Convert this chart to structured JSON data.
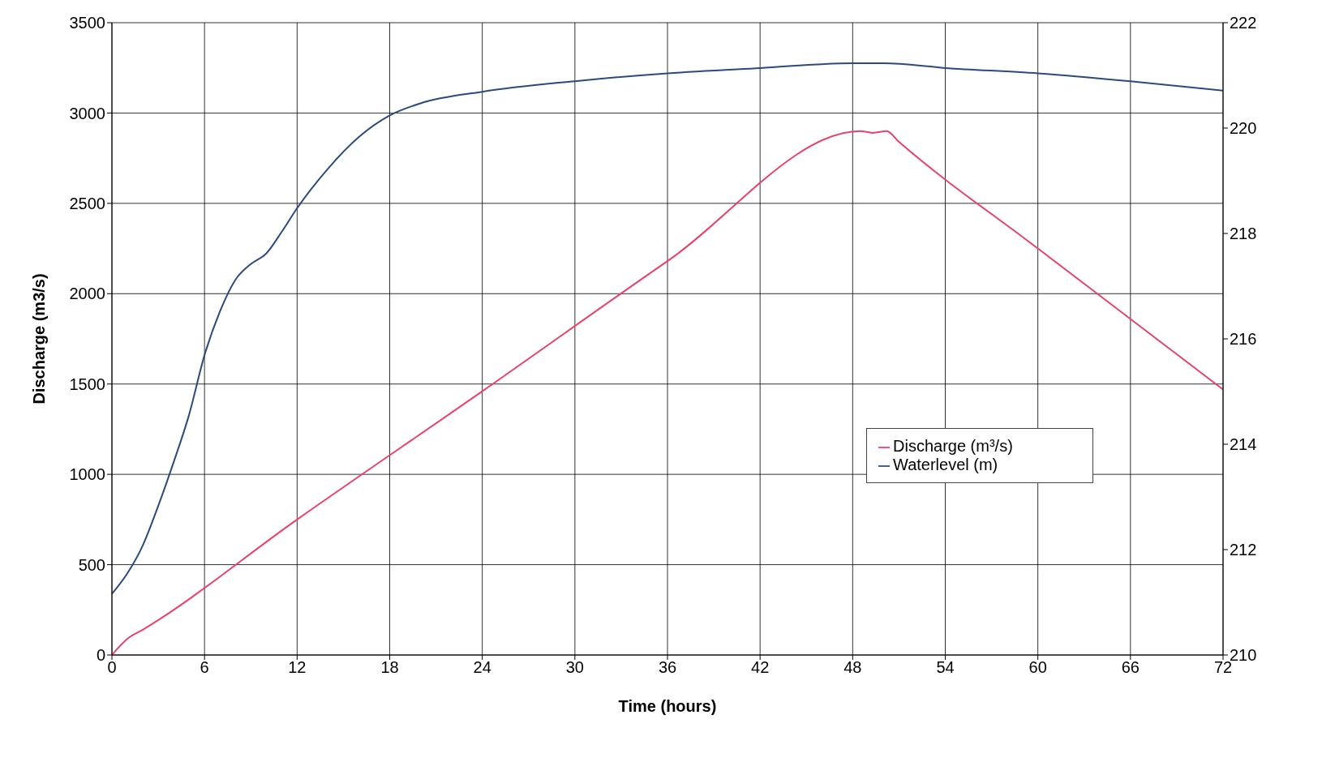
{
  "chart_data": {
    "type": "line",
    "xlabel": "Time (hours)",
    "ylabel": "Discharge (m3/s)",
    "xlim": [
      0,
      72
    ],
    "xticks": [
      0,
      6,
      12,
      18,
      24,
      30,
      36,
      42,
      48,
      54,
      60,
      66,
      72
    ],
    "ylim": [
      0,
      3500
    ],
    "yticks": [
      0,
      500,
      1000,
      1500,
      2000,
      2500,
      3000,
      3500
    ],
    "y2lim": [
      210,
      222
    ],
    "y2ticks": [
      210,
      212,
      214,
      216,
      218,
      220,
      222
    ],
    "grid": true,
    "legend": "right",
    "marker": "none",
    "line_style": "solid",
    "series": [
      {
        "name": "Discharge (m³/s)",
        "color": "#e8416a",
        "x": [
          0,
          1,
          2,
          12,
          24,
          36,
          48.5,
          49.3,
          50.2,
          51,
          60,
          66,
          72
        ],
        "values": [
          0,
          90,
          140,
          750,
          1460,
          2180,
          2900,
          2890,
          2900,
          2840,
          2250,
          1860,
          1470
        ]
      },
      {
        "name": "Waterlevel (m)",
        "color": "#2b4a7e",
        "axis": "y2",
        "x": [
          0,
          1,
          2,
          3,
          4,
          5,
          6,
          7,
          8,
          9,
          10,
          11,
          12,
          14,
          16,
          18,
          20,
          24,
          30,
          36,
          42,
          48,
          50,
          54,
          60,
          66,
          72
        ],
        "values": [
          211.16,
          211.55,
          212.08,
          212.83,
          213.66,
          214.56,
          215.69,
          216.52,
          217.12,
          217.42,
          217.62,
          218.03,
          218.48,
          219.23,
          219.83,
          220.24,
          220.47,
          220.69,
          220.89,
          221.04,
          221.14,
          221.23,
          221.23,
          221.14,
          221.04,
          220.89,
          220.71
        ]
      }
    ]
  }
}
